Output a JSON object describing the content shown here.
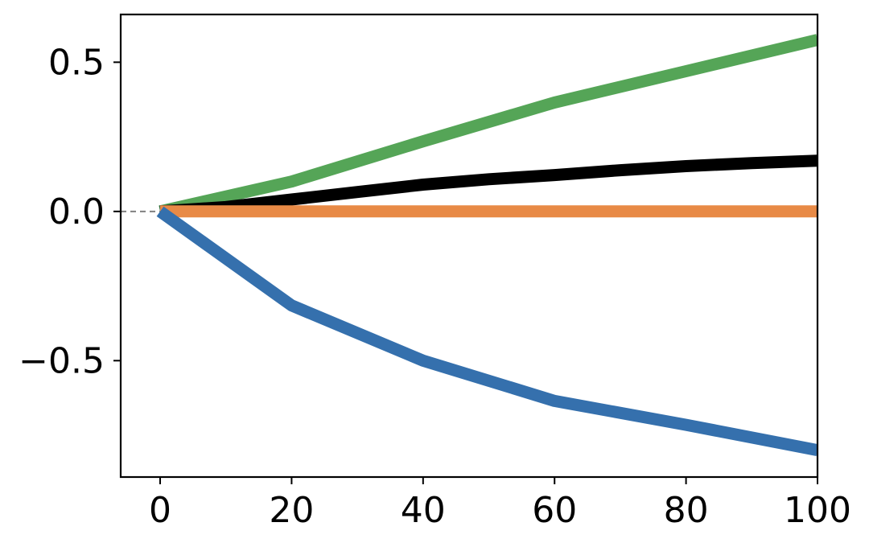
{
  "chart_data": {
    "type": "line",
    "title": "",
    "xlabel": "",
    "ylabel": "",
    "xlim": [
      -6,
      100
    ],
    "ylim": [
      -0.89,
      0.66
    ],
    "x_ticks": [
      0,
      20,
      40,
      60,
      80,
      100
    ],
    "x_tick_labels": [
      "0",
      "20",
      "40",
      "60",
      "80",
      "100"
    ],
    "y_ticks": [
      0.5,
      0.0,
      -0.5
    ],
    "y_tick_labels": [
      "0.5",
      "0.0",
      "−0.5"
    ],
    "grid": false,
    "reference_line": {
      "y": 0.0,
      "x_start": -6,
      "x_end": 0,
      "style": "dashed",
      "color": "#808080"
    },
    "series": [
      {
        "color": "#55a557",
        "x": [
          0,
          20,
          40,
          60,
          80,
          100
        ],
        "values": [
          0.0,
          0.1,
          0.235,
          0.365,
          0.47,
          0.575
        ]
      },
      {
        "color": "#000000",
        "x": [
          0,
          10,
          20,
          30,
          40,
          50,
          60,
          70,
          80,
          90,
          100
        ],
        "values": [
          0.0,
          0.015,
          0.04,
          0.065,
          0.09,
          0.108,
          0.122,
          0.138,
          0.152,
          0.162,
          0.17
        ]
      },
      {
        "color": "#e88a46",
        "x": [
          0,
          100
        ],
        "values": [
          0.0,
          0.0
        ]
      },
      {
        "color": "#3570ad",
        "x": [
          0,
          20,
          40,
          60,
          80,
          100
        ],
        "values": [
          0.0,
          -0.315,
          -0.5,
          -0.635,
          -0.715,
          -0.8
        ]
      }
    ]
  }
}
